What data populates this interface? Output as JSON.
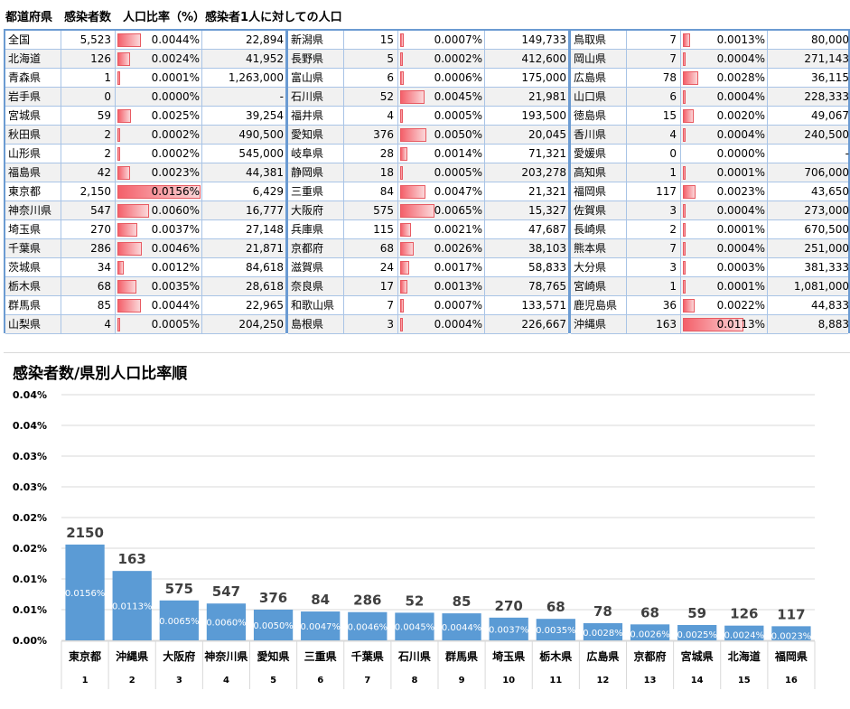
{
  "header": {
    "text": "都道府県　感染者数　人口比率（%）感染者1人に対しての人口"
  },
  "table": {
    "blocks": [
      [
        {
          "name": "全国",
          "count": "5,523",
          "rate": "0.0044%",
          "pop": "22,894",
          "bar": 0.0044
        },
        {
          "name": "北海道",
          "count": "126",
          "rate": "0.0024%",
          "pop": "41,952",
          "bar": 0.0024
        },
        {
          "name": "青森県",
          "count": "1",
          "rate": "0.0001%",
          "pop": "1,263,000",
          "bar": 0.0001
        },
        {
          "name": "岩手県",
          "count": "0",
          "rate": "0.0000%",
          "pop": "-",
          "bar": 0
        },
        {
          "name": "宮城県",
          "count": "59",
          "rate": "0.0025%",
          "pop": "39,254",
          "bar": 0.0025
        },
        {
          "name": "秋田県",
          "count": "2",
          "rate": "0.0002%",
          "pop": "490,500",
          "bar": 0.0002
        },
        {
          "name": "山形県",
          "count": "2",
          "rate": "0.0002%",
          "pop": "545,000",
          "bar": 0.0002
        },
        {
          "name": "福島県",
          "count": "42",
          "rate": "0.0023%",
          "pop": "44,381",
          "bar": 0.0023
        },
        {
          "name": "東京都",
          "count": "2,150",
          "rate": "0.0156%",
          "pop": "6,429",
          "bar": 0.0156
        },
        {
          "name": "神奈川県",
          "count": "547",
          "rate": "0.0060%",
          "pop": "16,777",
          "bar": 0.006
        },
        {
          "name": "埼玉県",
          "count": "270",
          "rate": "0.0037%",
          "pop": "27,148",
          "bar": 0.0037
        },
        {
          "name": "千葉県",
          "count": "286",
          "rate": "0.0046%",
          "pop": "21,871",
          "bar": 0.0046
        },
        {
          "name": "茨城県",
          "count": "34",
          "rate": "0.0012%",
          "pop": "84,618",
          "bar": 0.0012
        },
        {
          "name": "栃木県",
          "count": "68",
          "rate": "0.0035%",
          "pop": "28,618",
          "bar": 0.0035
        },
        {
          "name": "群馬県",
          "count": "85",
          "rate": "0.0044%",
          "pop": "22,965",
          "bar": 0.0044
        },
        {
          "name": "山梨県",
          "count": "4",
          "rate": "0.0005%",
          "pop": "204,250",
          "bar": 0.0005
        }
      ],
      [
        {
          "name": "新潟県",
          "count": "15",
          "rate": "0.0007%",
          "pop": "149,733",
          "bar": 0.0007
        },
        {
          "name": "長野県",
          "count": "5",
          "rate": "0.0002%",
          "pop": "412,600",
          "bar": 0.0002
        },
        {
          "name": "富山県",
          "count": "6",
          "rate": "0.0006%",
          "pop": "175,000",
          "bar": 0.0006
        },
        {
          "name": "石川県",
          "count": "52",
          "rate": "0.0045%",
          "pop": "21,981",
          "bar": 0.0045
        },
        {
          "name": "福井県",
          "count": "4",
          "rate": "0.0005%",
          "pop": "193,500",
          "bar": 0.0005
        },
        {
          "name": "愛知県",
          "count": "376",
          "rate": "0.0050%",
          "pop": "20,045",
          "bar": 0.005
        },
        {
          "name": "岐阜県",
          "count": "28",
          "rate": "0.0014%",
          "pop": "71,321",
          "bar": 0.0014
        },
        {
          "name": "静岡県",
          "count": "18",
          "rate": "0.0005%",
          "pop": "203,278",
          "bar": 0.0005
        },
        {
          "name": "三重県",
          "count": "84",
          "rate": "0.0047%",
          "pop": "21,321",
          "bar": 0.0047
        },
        {
          "name": "大阪府",
          "count": "575",
          "rate": "0.0065%",
          "pop": "15,327",
          "bar": 0.0065
        },
        {
          "name": "兵庫県",
          "count": "115",
          "rate": "0.0021%",
          "pop": "47,687",
          "bar": 0.0021
        },
        {
          "name": "京都府",
          "count": "68",
          "rate": "0.0026%",
          "pop": "38,103",
          "bar": 0.0026
        },
        {
          "name": "滋賀県",
          "count": "24",
          "rate": "0.0017%",
          "pop": "58,833",
          "bar": 0.0017
        },
        {
          "name": "奈良県",
          "count": "17",
          "rate": "0.0013%",
          "pop": "78,765",
          "bar": 0.0013
        },
        {
          "name": "和歌山県",
          "count": "7",
          "rate": "0.0007%",
          "pop": "133,571",
          "bar": 0.0007
        },
        {
          "name": "島根県",
          "count": "3",
          "rate": "0.0004%",
          "pop": "226,667",
          "bar": 0.0004
        }
      ],
      [
        {
          "name": "鳥取県",
          "count": "7",
          "rate": "0.0013%",
          "pop": "80,000",
          "bar": 0.0013
        },
        {
          "name": "岡山県",
          "count": "7",
          "rate": "0.0004%",
          "pop": "271,143",
          "bar": 0.0004
        },
        {
          "name": "広島県",
          "count": "78",
          "rate": "0.0028%",
          "pop": "36,115",
          "bar": 0.0028
        },
        {
          "name": "山口県",
          "count": "6",
          "rate": "0.0004%",
          "pop": "228,333",
          "bar": 0.0004
        },
        {
          "name": "徳島県",
          "count": "15",
          "rate": "0.0020%",
          "pop": "49,067",
          "bar": 0.002
        },
        {
          "name": "香川県",
          "count": "4",
          "rate": "0.0004%",
          "pop": "240,500",
          "bar": 0.0004
        },
        {
          "name": "愛媛県",
          "count": "0",
          "rate": "0.0000%",
          "pop": "-",
          "bar": 0
        },
        {
          "name": "高知県",
          "count": "1",
          "rate": "0.0001%",
          "pop": "706,000",
          "bar": 0.0001
        },
        {
          "name": "福岡県",
          "count": "117",
          "rate": "0.0023%",
          "pop": "43,650",
          "bar": 0.0023
        },
        {
          "name": "佐賀県",
          "count": "3",
          "rate": "0.0004%",
          "pop": "273,000",
          "bar": 0.0004
        },
        {
          "name": "長崎県",
          "count": "2",
          "rate": "0.0001%",
          "pop": "670,500",
          "bar": 0.0001
        },
        {
          "name": "熊本県",
          "count": "7",
          "rate": "0.0004%",
          "pop": "251,000",
          "bar": 0.0004
        },
        {
          "name": "大分県",
          "count": "3",
          "rate": "0.0003%",
          "pop": "381,333",
          "bar": 0.0003
        },
        {
          "name": "宮崎県",
          "count": "1",
          "rate": "0.0001%",
          "pop": "1,081,000",
          "bar": 0.0001
        },
        {
          "name": "鹿児島県",
          "count": "36",
          "rate": "0.0022%",
          "pop": "44,833",
          "bar": 0.0022
        },
        {
          "name": "沖縄県",
          "count": "163",
          "rate": "0.0113%",
          "pop": "8,883",
          "bar": 0.0113
        }
      ]
    ]
  },
  "chart_data": {
    "type": "bar",
    "title": "感染者数/県別人口比率順",
    "categories": [
      "東京都",
      "沖縄県",
      "大阪府",
      "神奈川県",
      "愛知県",
      "三重県",
      "千葉県",
      "石川県",
      "群馬県",
      "埼玉県",
      "栃木県",
      "広島県",
      "京都府",
      "宮城県",
      "北海道",
      "福岡県"
    ],
    "ranks": [
      "1",
      "2",
      "3",
      "4",
      "5",
      "6",
      "7",
      "8",
      "9",
      "10",
      "11",
      "12",
      "13",
      "14",
      "15",
      "16"
    ],
    "values": [
      0.0156,
      0.0113,
      0.0065,
      0.006,
      0.005,
      0.0047,
      0.0046,
      0.0045,
      0.0044,
      0.0037,
      0.0035,
      0.0028,
      0.0026,
      0.0025,
      0.0024,
      0.0023
    ],
    "value_labels": [
      "0.0156%",
      "0.0113%",
      "0.0065%",
      "0.0060%",
      "0.0050%",
      "0.0047%",
      "0.0046%",
      "0.0045%",
      "0.0044%",
      "0.0037%",
      "0.0035%",
      "0.0028%",
      "0.0026%",
      "0.0025%",
      "0.0024%",
      "0.0023%"
    ],
    "counts": [
      "2150",
      "163",
      "575",
      "547",
      "376",
      "84",
      "286",
      "52",
      "85",
      "270",
      "68",
      "78",
      "68",
      "59",
      "126",
      "117"
    ],
    "y_ticks": [
      "0.00%",
      "0.01%",
      "0.01%",
      "0.02%",
      "0.02%",
      "0.03%",
      "0.03%",
      "0.04%",
      "0.04%"
    ],
    "ylim": [
      0,
      0.04
    ],
    "grid": true,
    "bar_color": "#5b9bd5"
  }
}
